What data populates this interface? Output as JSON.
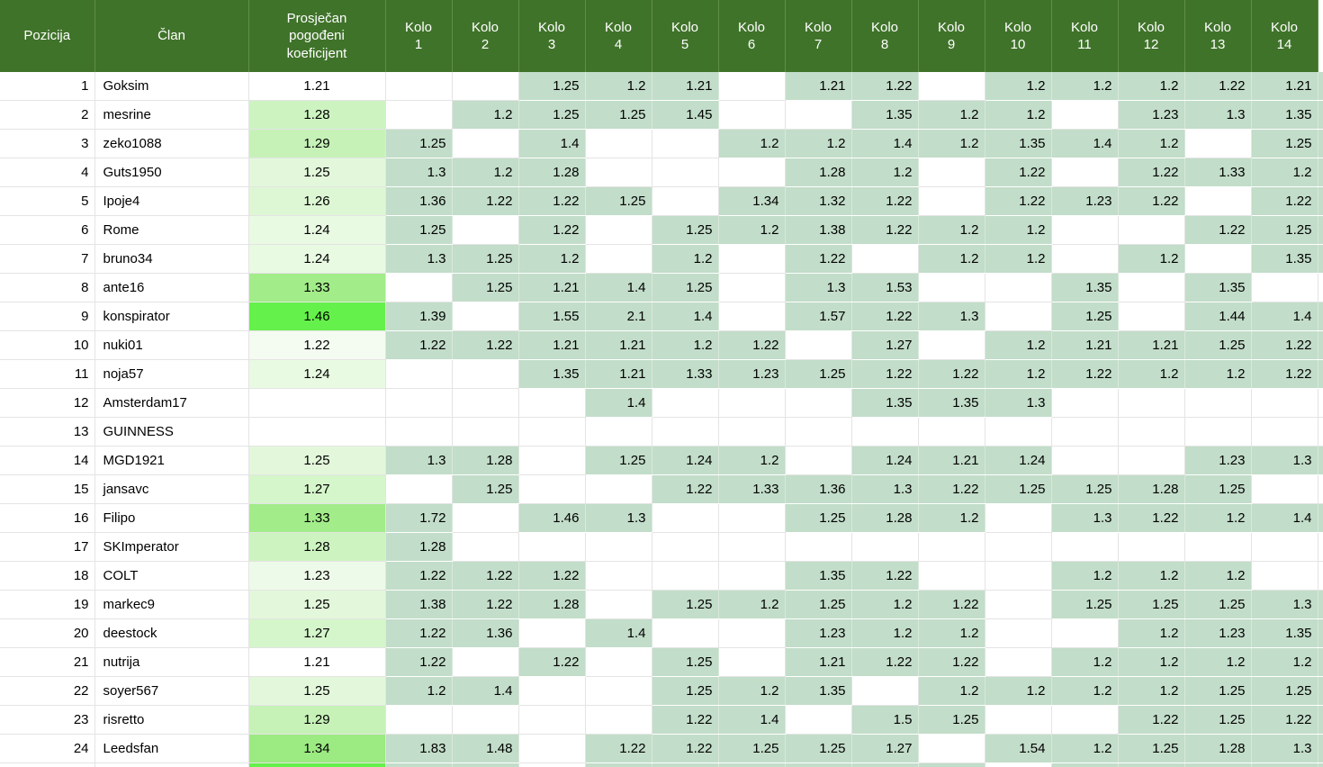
{
  "colors": {
    "header_bg": "#40732a",
    "header_text": "#ffffff",
    "round_cell_green": "#c2ddc9",
    "gridline": "#e4e4e4",
    "scale_min_color": "#ffffff",
    "scale_max_color": "#65f14b"
  },
  "table": {
    "columns": [
      "Pozicija",
      "Član",
      "Prosječan\npogođeni\nkoeficijent",
      "Kolo\n1",
      "Kolo\n2",
      "Kolo\n3",
      "Kolo\n4",
      "Kolo\n5",
      "Kolo\n6",
      "Kolo\n7",
      "Kolo\n8",
      "Kolo\n9",
      "Kolo\n10",
      "Kolo\n11",
      "Kolo\n12",
      "Kolo\n13",
      "Kolo\n14"
    ],
    "rows": [
      {
        "pos": "1",
        "member": "Goksim",
        "coef": "1.21",
        "coef_color": "#ffffff",
        "kolo": [
          "",
          "",
          "1.25",
          "1.2",
          "1.21",
          "",
          "1.21",
          "1.22",
          "",
          "1.2",
          "1.2",
          "1.2",
          "1.22",
          "1.21"
        ]
      },
      {
        "pos": "2",
        "member": "mesrine",
        "coef": "1.28",
        "coef_color": "#cdf3c1",
        "kolo": [
          "",
          "1.2",
          "1.25",
          "1.25",
          "1.45",
          "",
          "",
          "1.35",
          "1.2",
          "1.2",
          "",
          "1.23",
          "1.3",
          "1.35"
        ]
      },
      {
        "pos": "3",
        "member": "zeko1088",
        "coef": "1.29",
        "coef_color": "#c6f2b8",
        "kolo": [
          "1.25",
          "",
          "1.4",
          "",
          "",
          "1.2",
          "1.2",
          "1.4",
          "1.2",
          "1.35",
          "1.4",
          "1.2",
          "",
          "1.25"
        ]
      },
      {
        "pos": "4",
        "member": "Guts1950",
        "coef": "1.25",
        "coef_color": "#e3f8db",
        "kolo": [
          "1.3",
          "1.2",
          "1.28",
          "",
          "",
          "",
          "1.28",
          "1.2",
          "",
          "1.22",
          "",
          "1.22",
          "1.33",
          "1.2"
        ]
      },
      {
        "pos": "5",
        "member": "Ipoje4",
        "coef": "1.26",
        "coef_color": "#ddf7d4",
        "kolo": [
          "1.36",
          "1.22",
          "1.22",
          "1.25",
          "",
          "1.34",
          "1.32",
          "1.22",
          "",
          "1.22",
          "1.23",
          "1.22",
          "",
          "1.22"
        ]
      },
      {
        "pos": "6",
        "member": "Rome",
        "coef": "1.24",
        "coef_color": "#e9fae3",
        "kolo": [
          "1.25",
          "",
          "1.22",
          "",
          "1.25",
          "1.2",
          "1.38",
          "1.22",
          "1.2",
          "1.2",
          "",
          "",
          "1.22",
          "1.25"
        ]
      },
      {
        "pos": "7",
        "member": "bruno34",
        "coef": "1.24",
        "coef_color": "#e9fae3",
        "kolo": [
          "1.3",
          "1.25",
          "1.2",
          "",
          "1.2",
          "",
          "1.22",
          "",
          "1.2",
          "1.2",
          "",
          "1.2",
          "",
          "1.35"
        ]
      },
      {
        "pos": "8",
        "member": "ante16",
        "coef": "1.33",
        "coef_color": "#a2ec89",
        "kolo": [
          "",
          "1.25",
          "1.21",
          "1.4",
          "1.25",
          "",
          "1.3",
          "1.53",
          "",
          "",
          "1.35",
          "",
          "1.35",
          ""
        ]
      },
      {
        "pos": "9",
        "member": "konspirator",
        "coef": "1.46",
        "coef_color": "#65f14b",
        "kolo": [
          "1.39",
          "",
          "1.55",
          "2.1",
          "1.4",
          "",
          "1.57",
          "1.22",
          "1.3",
          "",
          "1.25",
          "",
          "1.44",
          "1.4"
        ]
      },
      {
        "pos": "10",
        "member": "nuki01",
        "coef": "1.22",
        "coef_color": "#f4fcf1",
        "kolo": [
          "1.22",
          "1.22",
          "1.21",
          "1.21",
          "1.2",
          "1.22",
          "",
          "1.27",
          "",
          "1.2",
          "1.21",
          "1.21",
          "1.25",
          "1.22"
        ]
      },
      {
        "pos": "11",
        "member": "noja57",
        "coef": "1.24",
        "coef_color": "#e9fae3",
        "kolo": [
          "",
          "",
          "1.35",
          "1.21",
          "1.33",
          "1.23",
          "1.25",
          "1.22",
          "1.22",
          "1.2",
          "1.22",
          "1.2",
          "1.2",
          "1.22"
        ]
      },
      {
        "pos": "12",
        "member": "Amsterdam17",
        "coef": "",
        "coef_color": "#ffffff",
        "kolo": [
          "",
          "",
          "",
          "1.4",
          "",
          "",
          "",
          "1.35",
          "1.35",
          "1.3",
          "",
          "",
          "",
          ""
        ]
      },
      {
        "pos": "13",
        "member": "GUINNESS",
        "coef": "",
        "coef_color": "#ffffff",
        "kolo": [
          "",
          "",
          "",
          "",
          "",
          "",
          "",
          "",
          "",
          "",
          "",
          "",
          "",
          ""
        ]
      },
      {
        "pos": "14",
        "member": "MGD1921",
        "coef": "1.25",
        "coef_color": "#e3f8db",
        "kolo": [
          "1.3",
          "1.28",
          "",
          "1.25",
          "1.24",
          "1.2",
          "",
          "1.24",
          "1.21",
          "1.24",
          "",
          "",
          "1.23",
          "1.3"
        ]
      },
      {
        "pos": "15",
        "member": "jansavc",
        "coef": "1.27",
        "coef_color": "#d5f5ca",
        "kolo": [
          "",
          "1.25",
          "",
          "",
          "1.22",
          "1.33",
          "1.36",
          "1.3",
          "1.22",
          "1.25",
          "1.25",
          "1.28",
          "1.25",
          ""
        ]
      },
      {
        "pos": "16",
        "member": "Filipo",
        "coef": "1.33",
        "coef_color": "#a2ec89",
        "kolo": [
          "1.72",
          "",
          "1.46",
          "1.3",
          "",
          "",
          "1.25",
          "1.28",
          "1.2",
          "",
          "1.3",
          "1.22",
          "1.2",
          "1.4"
        ]
      },
      {
        "pos": "17",
        "member": "SKImperator",
        "coef": "1.28",
        "coef_color": "#cdf3c1",
        "kolo": [
          "1.28",
          "",
          "",
          "",
          "",
          "",
          "",
          "",
          "",
          "",
          "",
          "",
          "",
          ""
        ]
      },
      {
        "pos": "18",
        "member": "COLT",
        "coef": "1.23",
        "coef_color": "#eefae9",
        "kolo": [
          "1.22",
          "1.22",
          "1.22",
          "",
          "",
          "",
          "1.35",
          "1.22",
          "",
          "",
          "1.2",
          "1.2",
          "1.2",
          ""
        ]
      },
      {
        "pos": "19",
        "member": "markec9",
        "coef": "1.25",
        "coef_color": "#e3f8db",
        "kolo": [
          "1.38",
          "1.22",
          "1.28",
          "",
          "1.25",
          "1.2",
          "1.25",
          "1.2",
          "1.22",
          "",
          "1.25",
          "1.25",
          "1.25",
          "1.3"
        ]
      },
      {
        "pos": "20",
        "member": "deestock",
        "coef": "1.27",
        "coef_color": "#d5f5ca",
        "kolo": [
          "1.22",
          "1.36",
          "",
          "1.4",
          "",
          "",
          "1.23",
          "1.2",
          "1.2",
          "",
          "",
          "1.2",
          "1.23",
          "1.35"
        ]
      },
      {
        "pos": "21",
        "member": "nutrija",
        "coef": "1.21",
        "coef_color": "#ffffff",
        "kolo": [
          "1.22",
          "",
          "1.22",
          "",
          "1.25",
          "",
          "1.21",
          "1.22",
          "1.22",
          "",
          "1.2",
          "1.2",
          "1.2",
          "1.2"
        ]
      },
      {
        "pos": "22",
        "member": "soyer567",
        "coef": "1.25",
        "coef_color": "#e3f8db",
        "kolo": [
          "1.2",
          "1.4",
          "",
          "",
          "1.25",
          "1.2",
          "1.35",
          "",
          "1.2",
          "1.2",
          "1.2",
          "1.2",
          "1.25",
          "1.25"
        ]
      },
      {
        "pos": "23",
        "member": "risretto",
        "coef": "1.29",
        "coef_color": "#c6f2b8",
        "kolo": [
          "",
          "",
          "",
          "",
          "1.22",
          "1.4",
          "",
          "1.5",
          "1.25",
          "",
          "",
          "1.22",
          "1.25",
          "1.22"
        ]
      },
      {
        "pos": "24",
        "member": "Leedsfan",
        "coef": "1.34",
        "coef_color": "#9cea82",
        "kolo": [
          "1.83",
          "1.48",
          "",
          "1.22",
          "1.22",
          "1.25",
          "1.25",
          "1.27",
          "",
          "1.54",
          "1.2",
          "1.25",
          "1.28",
          "1.3"
        ]
      }
    ],
    "partial_row": {
      "coef_color": "#65f14b",
      "kolo_shaded": [
        true,
        true,
        false,
        true,
        true,
        true,
        true,
        true,
        true,
        false,
        true,
        true,
        true,
        true
      ],
      "cutoff_shaded": true
    }
  }
}
